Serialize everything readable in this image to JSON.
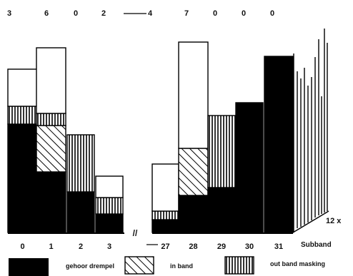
{
  "chart_data": {
    "type": "bar",
    "top_labels_left": [
      "3",
      "6",
      "0",
      "2"
    ],
    "top_labels_right": [
      "4",
      "7",
      "0",
      "0",
      "0"
    ],
    "categories": [
      "0",
      "1",
      "2",
      "3",
      "27",
      "28",
      "29",
      "30",
      "31"
    ],
    "axis_break": "//",
    "axis_label": "Subband",
    "multiplier_label": "12 x",
    "series": [
      {
        "name": "gehoor drempel",
        "values": [
          152,
          85,
          57,
          26,
          18,
          52,
          63,
          182,
          247
        ]
      },
      {
        "name": "in band",
        "values": [
          0,
          65,
          0,
          0,
          0,
          66,
          0,
          0,
          0
        ]
      },
      {
        "name": "out band masking",
        "values": [
          25,
          17,
          80,
          23,
          12,
          0,
          101,
          0,
          0
        ]
      },
      {
        "name": "",
        "values": [
          52,
          92,
          0,
          30,
          66,
          149,
          0,
          0,
          0
        ]
      }
    ],
    "legend": {
      "position": "bottom",
      "items": [
        {
          "label": "gehoor drempel",
          "pattern": "solid"
        },
        {
          "label": "in band",
          "pattern": "diagonal"
        },
        {
          "label": "out band masking",
          "pattern": "vertical"
        }
      ]
    },
    "colors": {
      "solid": "#000000",
      "outline": "#000000",
      "background": "#ffffff"
    }
  }
}
